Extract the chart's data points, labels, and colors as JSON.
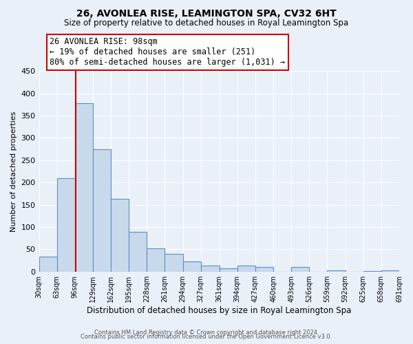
{
  "title": "26, AVONLEA RISE, LEAMINGTON SPA, CV32 6HT",
  "subtitle": "Size of property relative to detached houses in Royal Leamington Spa",
  "xlabel": "Distribution of detached houses by size in Royal Leamington Spa",
  "ylabel": "Number of detached properties",
  "footer_line1": "Contains HM Land Registry data © Crown copyright and database right 2024.",
  "footer_line2": "Contains public sector information licensed under the Open Government Licence v3.0.",
  "bin_edges": [
    30,
    63,
    96,
    129,
    162,
    195,
    228,
    261,
    294,
    327,
    361,
    394,
    427,
    460,
    493,
    526,
    559,
    592,
    625,
    658,
    691
  ],
  "bin_counts": [
    33,
    210,
    378,
    275,
    163,
    89,
    52,
    40,
    23,
    13,
    8,
    13,
    11,
    0,
    10,
    0,
    2,
    0,
    1,
    3
  ],
  "bar_color": "#c9d9ec",
  "bar_edge_color": "#5b8fc9",
  "background_color": "#eaf0f8",
  "property_line_x": 98,
  "property_line_color": "#cc0000",
  "annotation_line1": "26 AVONLEA RISE: 98sqm",
  "annotation_line2": "← 19% of detached houses are smaller (251)",
  "annotation_line3": "80% of semi-detached houses are larger (1,031) →",
  "annotation_box_color": "#ffffff",
  "annotation_box_edge_color": "#cc0000",
  "ylim": [
    0,
    450
  ],
  "yticks": [
    0,
    50,
    100,
    150,
    200,
    250,
    300,
    350,
    400,
    450
  ]
}
